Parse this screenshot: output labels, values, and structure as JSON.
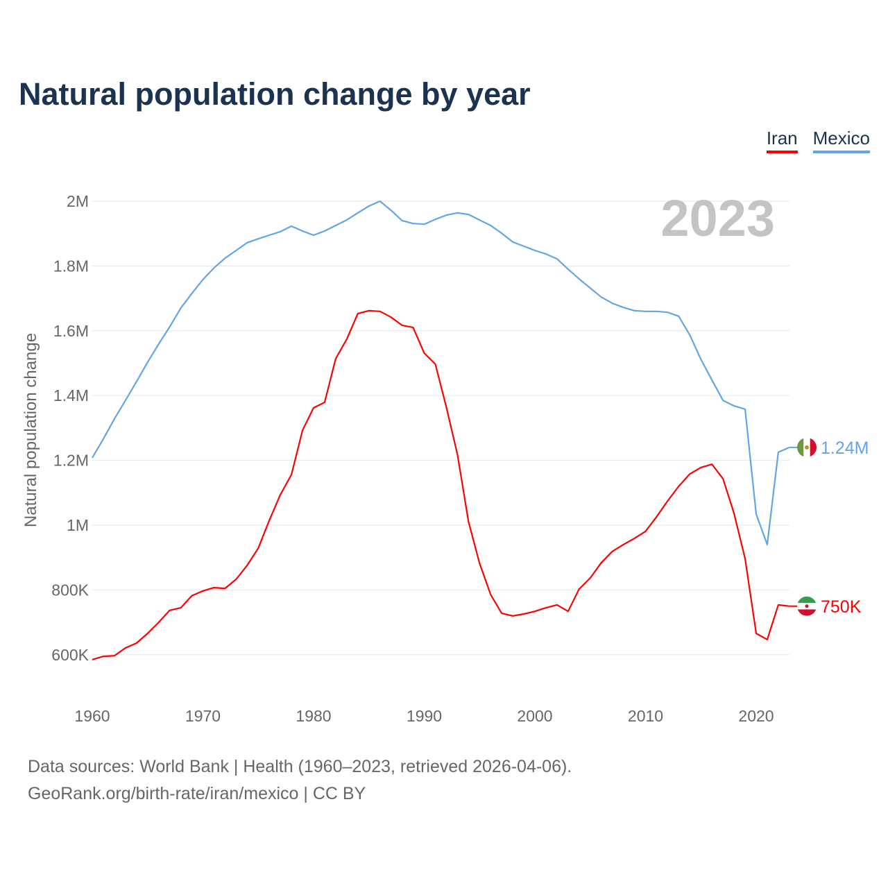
{
  "title": "Natural population change by year",
  "legend": [
    {
      "name": "Iran",
      "color": "#ff0000"
    },
    {
      "name": "Mexico",
      "color": "#60a5e8"
    }
  ],
  "year_label": "2023",
  "footer": {
    "line1": "Data sources: World Bank | Health (1960–2023, retrieved 2026-04-06).",
    "line2": "GeoRank.org/birth-rate/iran/mexico | CC BY"
  },
  "chart_data": {
    "type": "line",
    "title": "Natural population change by year",
    "xlabel": "",
    "ylabel": "Natural population change",
    "xlim": [
      1960,
      2023
    ],
    "ylim": [
      500000,
      2050000
    ],
    "x_ticks": [
      1960,
      1970,
      1980,
      1990,
      2000,
      2010,
      2020
    ],
    "y_ticks": [
      {
        "v": 600000,
        "label": "600K"
      },
      {
        "v": 800000,
        "label": "800K"
      },
      {
        "v": 1000000,
        "label": "1M"
      },
      {
        "v": 1200000,
        "label": "1.2M"
      },
      {
        "v": 1400000,
        "label": "1.4M"
      },
      {
        "v": 1600000,
        "label": "1.6M"
      },
      {
        "v": 1800000,
        "label": "1.8M"
      },
      {
        "v": 2000000,
        "label": "2M"
      }
    ],
    "grid": true,
    "legend_position": "top-right",
    "x_start": 1960,
    "series": [
      {
        "name": "Iran",
        "color": "#ff0000",
        "end_label": "750K",
        "flag": "iran-flag",
        "values": [
          585000,
          595000,
          597000,
          621000,
          636000,
          666000,
          700000,
          737000,
          745000,
          782000,
          797000,
          807000,
          805000,
          833000,
          876000,
          929000,
          1015000,
          1094000,
          1156000,
          1293000,
          1362000,
          1379000,
          1514000,
          1574000,
          1653000,
          1662000,
          1660000,
          1642000,
          1617000,
          1610000,
          1531000,
          1497000,
          1364000,
          1218000,
          1011000,
          882000,
          786000,
          728000,
          720000,
          726000,
          734000,
          745000,
          754000,
          734000,
          803000,
          837000,
          884000,
          919000,
          940000,
          959000,
          981000,
          1026000,
          1075000,
          1120000,
          1158000,
          1178000,
          1188000,
          1143000,
          1036000,
          897000,
          666000,
          647000,
          754000,
          750000
        ]
      },
      {
        "name": "Mexico",
        "color": "#60a5e8",
        "end_label": "1.24M",
        "flag": "mexico-flag",
        "values": [
          1208000,
          1266000,
          1328000,
          1385000,
          1443000,
          1503000,
          1559000,
          1612000,
          1670000,
          1715000,
          1758000,
          1794000,
          1824000,
          1848000,
          1872000,
          1884000,
          1895000,
          1906000,
          1923000,
          1908000,
          1895000,
          1908000,
          1925000,
          1942000,
          1964000,
          1985000,
          2000000,
          1972000,
          1940000,
          1931000,
          1929000,
          1944000,
          1957000,
          1964000,
          1959000,
          1942000,
          1925000,
          1901000,
          1874000,
          1861000,
          1848000,
          1837000,
          1822000,
          1790000,
          1760000,
          1732000,
          1704000,
          1685000,
          1672000,
          1662000,
          1660000,
          1660000,
          1657000,
          1645000,
          1587000,
          1512000,
          1448000,
          1385000,
          1368000,
          1358000,
          1034000,
          940000,
          1225000,
          1240000
        ]
      }
    ]
  }
}
